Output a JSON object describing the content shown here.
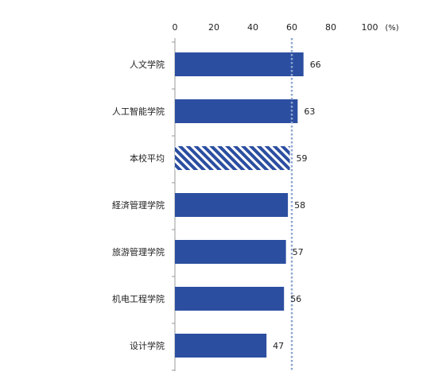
{
  "chart_data": {
    "type": "bar",
    "orientation": "horizontal",
    "unit": "(%)",
    "xlim": [
      0,
      100
    ],
    "ticks": [
      "0",
      "20",
      "40",
      "60",
      "80",
      "100"
    ],
    "reference_line": 60,
    "categories": [
      "人文学院",
      "人工智能学院",
      "本校平均",
      "経済管理学院",
      "旅游管理学院",
      "机电工程学院",
      "设计学院"
    ],
    "values": [
      66,
      63,
      59,
      58,
      57,
      56,
      47
    ],
    "value_labels": [
      "66",
      "63",
      "59",
      "58",
      "57",
      "56",
      "47"
    ],
    "highlight_category": "本校平均",
    "bar_color": "#2b4ea0",
    "highlight_pattern": "diagonal-stripes",
    "reference_line_color": "#8fa7cf"
  }
}
